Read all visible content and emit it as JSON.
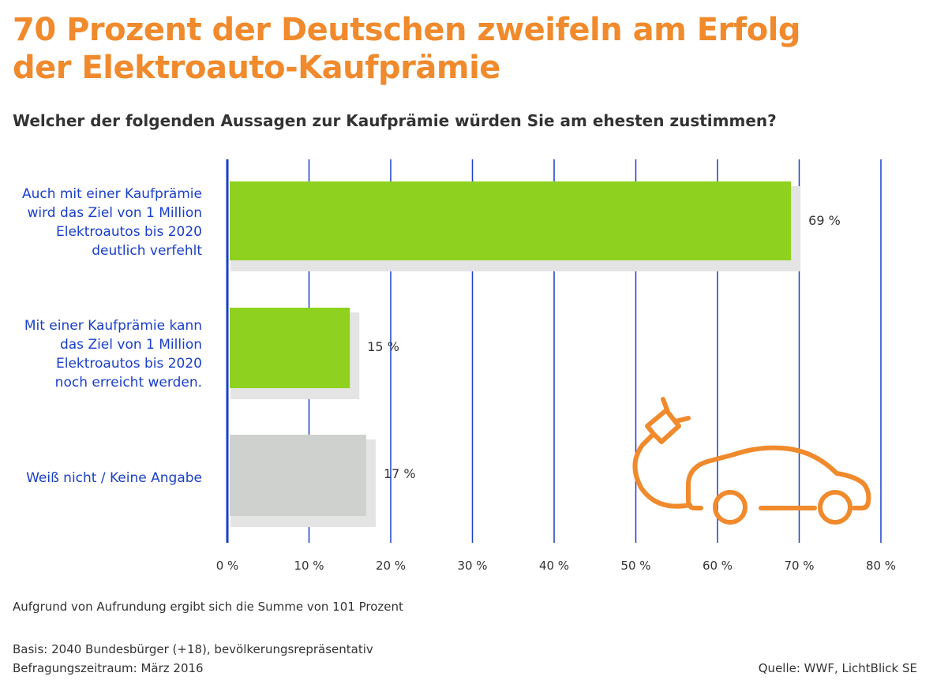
{
  "title_line1": "70 Prozent der Deutschen zweifeln am Erfolg",
  "title_line2": "der Elektroauto-Kaufprämie",
  "subtitle": "Welcher der folgenden Aussagen zur Kaufprämie würden Sie am ehesten zustimmen?",
  "categories": [
    [
      "Auch mit einer Kaufprämie",
      "wird das Ziel von 1 Million",
      "Elektroautos bis 2020",
      "deutlich verfehlt"
    ],
    [
      "Mit einer Kaufprämie kann",
      "das Ziel von 1 Million",
      "Elektroautos bis 2020",
      "noch erreicht werden."
    ],
    [
      "Weiß nicht / Keine Angabe"
    ]
  ],
  "footnotes": {
    "rounding": "Aufgrund von Aufrundung ergibt sich die Summe von 101 Prozent",
    "basis": "Basis: 2040 Bundesbürger (+18), bevölkerungsrepräsentativ",
    "period": "Befragungszeitraum: März 2016",
    "source": "Quelle: WWF, LichtBlick SE"
  },
  "icon": "electric-car-plug-icon",
  "colors": {
    "title": "#f08a2c",
    "bar_green": "#8ed21f",
    "bar_gray": "#cfd1cf",
    "axis_blue": "#1a3fc8",
    "icon_orange": "#f08a2c"
  },
  "chart_data": {
    "type": "bar",
    "orientation": "horizontal",
    "categories": [
      "Auch mit einer Kaufprämie wird das Ziel von 1 Million Elektroautos bis 2020 deutlich verfehlt",
      "Mit einer Kaufprämie kann das Ziel von 1 Million Elektroautos bis 2020 noch erreicht werden.",
      "Weiß nicht / Keine Angabe"
    ],
    "values": [
      69,
      15,
      17
    ],
    "value_labels": [
      "69 %",
      "15 %",
      "17 %"
    ],
    "xlim": [
      0,
      80
    ],
    "ticks": [
      0,
      10,
      20,
      30,
      40,
      50,
      60,
      70,
      80
    ],
    "tick_labels": [
      "0 %",
      "10 %",
      "20 %",
      "30 %",
      "40 %",
      "50 %",
      "60 %",
      "70 %",
      "80 %"
    ],
    "grid": true
  }
}
